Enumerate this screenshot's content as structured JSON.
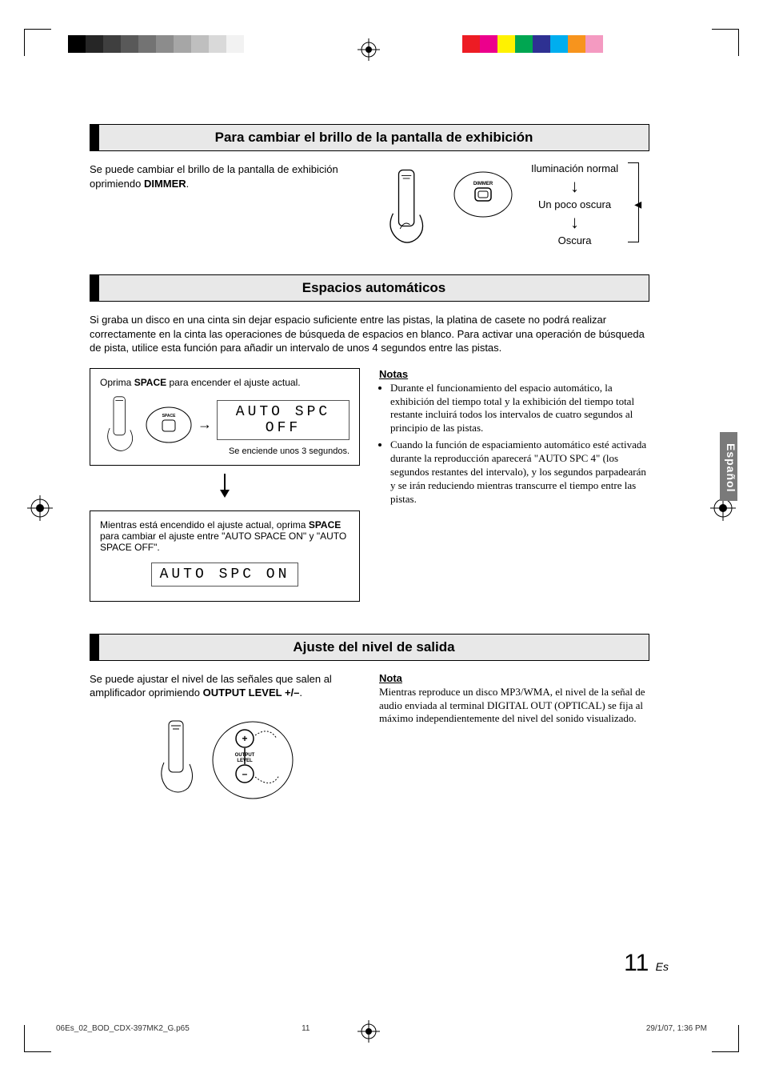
{
  "registration": {
    "gray_shades": [
      "#000000",
      "#262626",
      "#3f3f3f",
      "#595959",
      "#737373",
      "#8c8c8c",
      "#a6a6a6",
      "#bfbfbf",
      "#d9d9d9",
      "#f2f2f2"
    ],
    "cmyk_colors": [
      "#ed1c24",
      "#ec008c",
      "#fff200",
      "#00a651",
      "#2e3192",
      "#00aeef",
      "#f7941d",
      "#f49ac1"
    ]
  },
  "side_tab": "Español",
  "sections": {
    "dimmer": {
      "title": "Para cambiar el brillo de la pantalla de exhibición",
      "body_pre": "Se puede cambiar el brillo de la pantalla de exhibición oprimiendo ",
      "body_bold": "DIMMER",
      "body_post": ".",
      "button_label": "DIMMER",
      "states": [
        "Iluminación normal",
        "Un poco oscura",
        "Oscura"
      ]
    },
    "autospace": {
      "title": "Espacios automáticos",
      "intro": "Si graba un disco en una cinta sin dejar espacio suficiente entre las pistas, la platina de casete no podrá realizar correctamente en la cinta las operaciones de búsqueda de espacios en blanco. Para activar una operación de búsqueda de pista, utilice esta función para añadir un intervalo de unos 4 segundos entre las pistas.",
      "step1_pre": "Oprima ",
      "step1_bold": "SPACE",
      "step1_post": " para encender el ajuste actual.",
      "button_label": "SPACE",
      "lcd1": "AUTO SPC OFF",
      "lcd1_sub": "Se enciende unos 3 segundos.",
      "step2_pre": "Mientras está encendido el ajuste actual, oprima ",
      "step2_bold": "SPACE",
      "step2_post": " para cambiar el ajuste entre \"AUTO SPACE ON\" y \"AUTO SPACE OFF\".",
      "lcd2": "AUTO SPC ON",
      "notes_title": "Notas",
      "notes": [
        "Durante el funcionamiento del espacio automático, la exhibición del tiempo total y la exhibición del tiempo total restante incluirá todos los intervalos de cuatro segundos al principio de las pistas.",
        "Cuando la función de espaciamiento automático esté activada durante la reproducción aparecerá \"AUTO SPC 4\" (los segundos restantes del intervalo), y los segundos parpadearán y se irán reduciendo mientras transcurre el tiempo entre las pistas."
      ]
    },
    "output": {
      "title": "Ajuste del nivel de salida",
      "body_pre": "Se puede ajustar el nivel de las señales que salen al amplificador oprimiendo ",
      "body_bold": "OUTPUT LEVEL +/–",
      "body_post": ".",
      "button_label": "OUTPUT\nLEVEL",
      "note_title": "Nota",
      "note_body": "Mientras reproduce un disco MP3/WMA, el nivel de la señal de audio enviada al terminal DIGITAL OUT (OPTICAL) se fija al máximo independientemente del nivel del sonido visualizado."
    }
  },
  "footer": {
    "file": "06Es_02_BOD_CDX-397MK2_G.p65",
    "page": "11",
    "date": "29/1/07, 1:36 PM"
  },
  "page_number": "11",
  "page_number_suffix": "Es"
}
